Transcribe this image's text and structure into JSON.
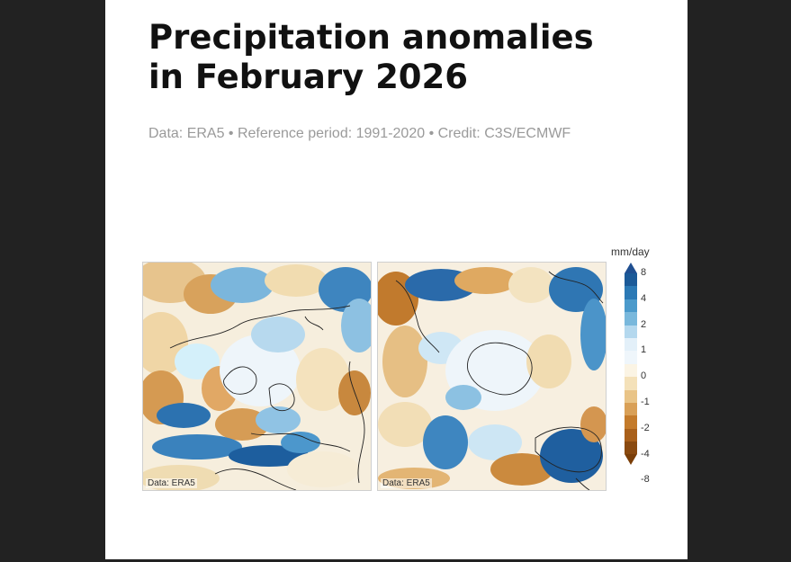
{
  "header": {
    "title_line1": "Precipitation anomalies",
    "title_line2": "in February 2026",
    "subtitle": "Data: ERA5 •  Reference period: 1991-2020 • Credit: C3S/ECMWF"
  },
  "maps": [
    {
      "region": "Northern hemisphere (polar view)",
      "credit": "Data: ERA5"
    },
    {
      "region": "Southern hemisphere (polar view)",
      "credit": "Data: ERA5"
    }
  ],
  "colorbar": {
    "unit": "mm/day",
    "ticks": [
      "8",
      "4",
      "2",
      "1",
      "0",
      "-1",
      "-2",
      "-4",
      "-8"
    ],
    "top_arrow_color": "#1f4f91",
    "bottom_arrow_color": "#7a3e08",
    "colors": [
      "#1b5a98",
      "#2b79b5",
      "#4b9acb",
      "#79b8dc",
      "#b4d8ee",
      "#e3f0f9",
      "#eff6fb",
      "#fbf4e4",
      "#f4e1b9",
      "#e9c487",
      "#d9a057",
      "#c47b2b",
      "#a9601a",
      "#8a4a10"
    ]
  }
}
